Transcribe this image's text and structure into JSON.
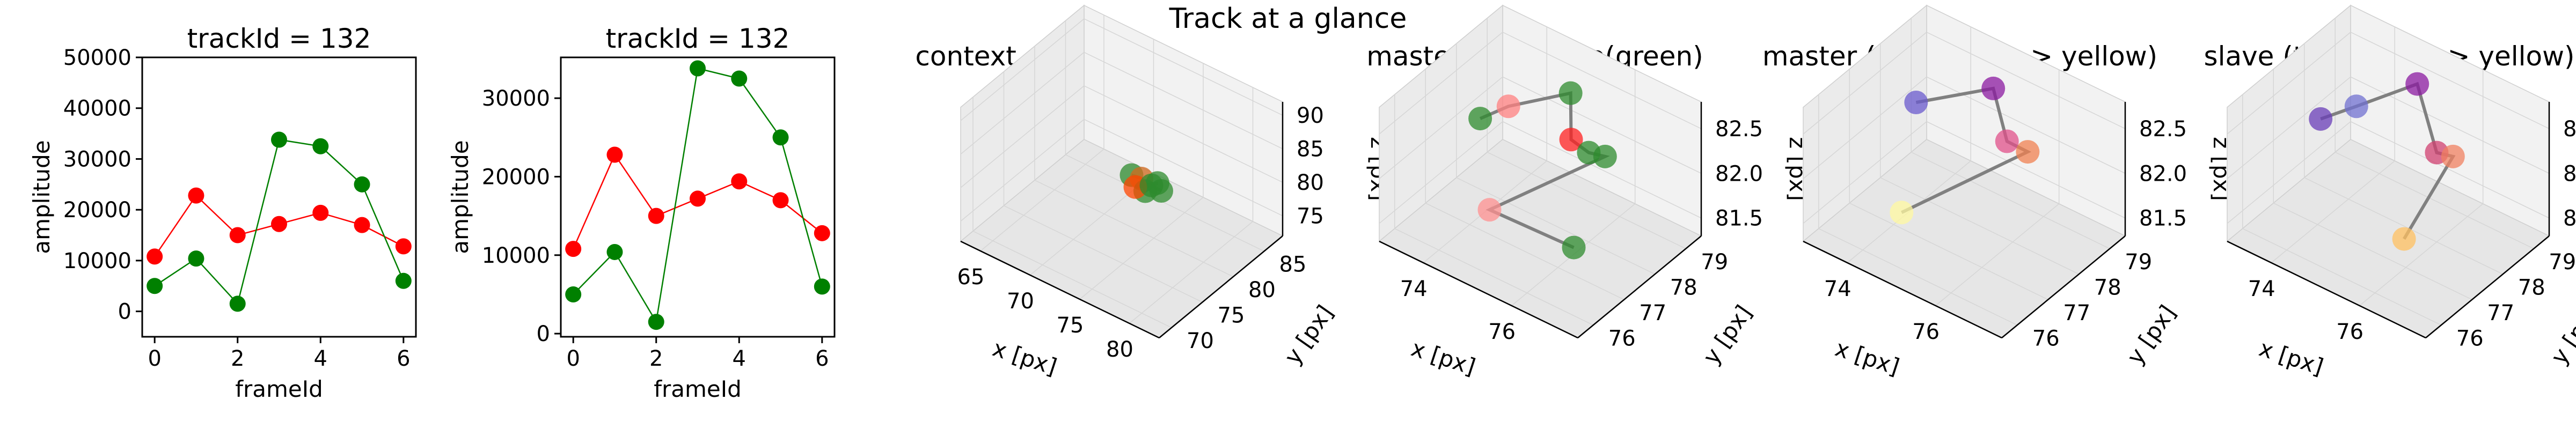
{
  "figure": {
    "suptitle": "Track at a glance"
  },
  "chart_data": [
    {
      "type": "line",
      "title": "trackId = 132",
      "xlabel": "frameId",
      "ylabel": "amplitude",
      "x": [
        0,
        1,
        2,
        3,
        4,
        5,
        6
      ],
      "xticks": [
        "0",
        "2",
        "4",
        "6"
      ],
      "xlim": [
        -0.3,
        6.3
      ],
      "yticks": [
        "0",
        "10000",
        "20000",
        "30000",
        "40000",
        "50000"
      ],
      "ylim": [
        -5000,
        50000
      ],
      "grid": false,
      "series": [
        {
          "color": "#ff0000",
          "values": [
            10800,
            22800,
            15000,
            17200,
            19400,
            17000,
            12800
          ]
        },
        {
          "color": "#008000",
          "values": [
            5000,
            10400,
            1500,
            33800,
            32500,
            25000,
            6000
          ]
        }
      ]
    },
    {
      "type": "line",
      "title": "trackId = 132",
      "xlabel": "frameId",
      "ylabel": "amplitude",
      "x": [
        0,
        1,
        2,
        3,
        4,
        5,
        6
      ],
      "xticks": [
        "0",
        "2",
        "4",
        "6"
      ],
      "xlim": [
        -0.3,
        6.3
      ],
      "yticks": [
        "0",
        "10000",
        "20000",
        "30000"
      ],
      "ylim": [
        -400,
        35200
      ],
      "grid": false,
      "series": [
        {
          "color": "#ff0000",
          "values": [
            10800,
            22800,
            15000,
            17200,
            19400,
            17000,
            12800
          ]
        },
        {
          "color": "#008000",
          "values": [
            5000,
            10400,
            1500,
            33800,
            32500,
            25000,
            6000
          ]
        }
      ]
    },
    {
      "type": "scatter",
      "projection": "3d",
      "title": "context +- 10px",
      "xlabel": "x [px]",
      "ylabel": "y [px]",
      "zlabel": "z [px]",
      "xticks": [
        "65",
        "70",
        "75",
        "80"
      ],
      "yticks": [
        "70",
        "75",
        "80",
        "85"
      ],
      "zticks": [
        "75",
        "80",
        "85",
        "90"
      ],
      "xlim": [
        63,
        83
      ],
      "ylim": [
        68,
        88
      ],
      "zlim": [
        72,
        92
      ],
      "points": [
        {
          "x": 74,
          "y": 78,
          "z": 82.2,
          "color": "#2e8b2e"
        },
        {
          "x": 75,
          "y": 78,
          "z": 82.4,
          "color": "#d2691e"
        },
        {
          "x": 76,
          "y": 77,
          "z": 82.0,
          "color": "#2e8b2e"
        },
        {
          "x": 76,
          "y": 79,
          "z": 81.7,
          "color": "#2e8b2e"
        },
        {
          "x": 75,
          "y": 77,
          "z": 81.9,
          "color": "#ff4500"
        },
        {
          "x": 76,
          "y": 78,
          "z": 82.1,
          "color": "#2e8b2e"
        },
        {
          "x": 77,
          "y": 78,
          "z": 82.0,
          "color": "#2e8b2e"
        }
      ]
    },
    {
      "type": "scatter",
      "projection": "3d",
      "title": "master(red) slave(green)",
      "xlabel": "x [px]",
      "ylabel": "y [px]",
      "zlabel": "z [px]",
      "xticks": [
        "74",
        "76"
      ],
      "yticks": [
        "76",
        "77",
        "78",
        "79"
      ],
      "zticks": [
        "81.5",
        "82.0",
        "82.5"
      ],
      "xlim": [
        73,
        77.5
      ],
      "ylim": [
        75.5,
        79.5
      ],
      "zlim": [
        81.3,
        82.8
      ],
      "points": [
        {
          "x": 73.4,
          "y": 78.2,
          "z": 82.0,
          "color": "#2e8b2e"
        },
        {
          "x": 73.9,
          "y": 78.4,
          "z": 82.2,
          "color": "#ff8080"
        },
        {
          "x": 75.1,
          "y": 78.7,
          "z": 82.55,
          "color": "#2e8b2e"
        },
        {
          "x": 75.6,
          "y": 78.0,
          "z": 82.35,
          "color": "#ff2020"
        },
        {
          "x": 76.0,
          "y": 78.0,
          "z": 82.3,
          "color": "#2e8b2e"
        },
        {
          "x": 76.3,
          "y": 78.1,
          "z": 82.3,
          "color": "#2e8b2e"
        },
        {
          "x": 74.8,
          "y": 76.5,
          "z": 81.8,
          "color": "#ff9090"
        },
        {
          "x": 76.5,
          "y": 76.8,
          "z": 81.7,
          "color": "#2e8b2e"
        }
      ]
    },
    {
      "type": "scatter",
      "projection": "3d",
      "title": "master (time: blue -> yellow)",
      "xlabel": "x [px]",
      "ylabel": "y [px]",
      "zlabel": "z [px]",
      "xticks": [
        "74",
        "76"
      ],
      "yticks": [
        "76",
        "77",
        "78",
        "79"
      ],
      "zticks": [
        "81.5",
        "82.0",
        "82.5"
      ],
      "xlim": [
        73,
        77.5
      ],
      "ylim": [
        75.5,
        79.5
      ],
      "zlim": [
        81.3,
        82.8
      ],
      "points": [
        {
          "x": 73.6,
          "y": 78.3,
          "z": 82.2,
          "color": "#6a5acd"
        },
        {
          "x": 75.0,
          "y": 78.8,
          "z": 82.55,
          "color": "#8b1aa0"
        },
        {
          "x": 75.8,
          "y": 78.1,
          "z": 82.35,
          "color": "#e0508a"
        },
        {
          "x": 76.2,
          "y": 78.2,
          "z": 82.3,
          "color": "#f08050"
        },
        {
          "x": 74.6,
          "y": 76.4,
          "z": 81.75,
          "color": "#fff8a0"
        }
      ]
    },
    {
      "type": "scatter",
      "projection": "3d",
      "title": "slave (time: blue -> yellow)",
      "xlabel": "x [px]",
      "ylabel": "y [px]",
      "zlabel": "z [px]",
      "xticks": [
        "74",
        "76"
      ],
      "yticks": [
        "76",
        "77",
        "78",
        "79"
      ],
      "zticks": [
        "81.5",
        "82.0",
        "82.5"
      ],
      "xlim": [
        73,
        77.5
      ],
      "ylim": [
        75.5,
        79.5
      ],
      "zlim": [
        81.3,
        82.8
      ],
      "points": [
        {
          "x": 73.3,
          "y": 78.1,
          "z": 82.0,
          "color": "#6a3db8"
        },
        {
          "x": 73.9,
          "y": 78.4,
          "z": 82.2,
          "color": "#7070d0"
        },
        {
          "x": 75.0,
          "y": 78.8,
          "z": 82.6,
          "color": "#8b1aa0"
        },
        {
          "x": 76.0,
          "y": 78.0,
          "z": 82.3,
          "color": "#d04070"
        },
        {
          "x": 76.3,
          "y": 78.1,
          "z": 82.3,
          "color": "#f08060"
        },
        {
          "x": 76.1,
          "y": 76.8,
          "z": 81.7,
          "color": "#ffc060"
        }
      ]
    }
  ]
}
